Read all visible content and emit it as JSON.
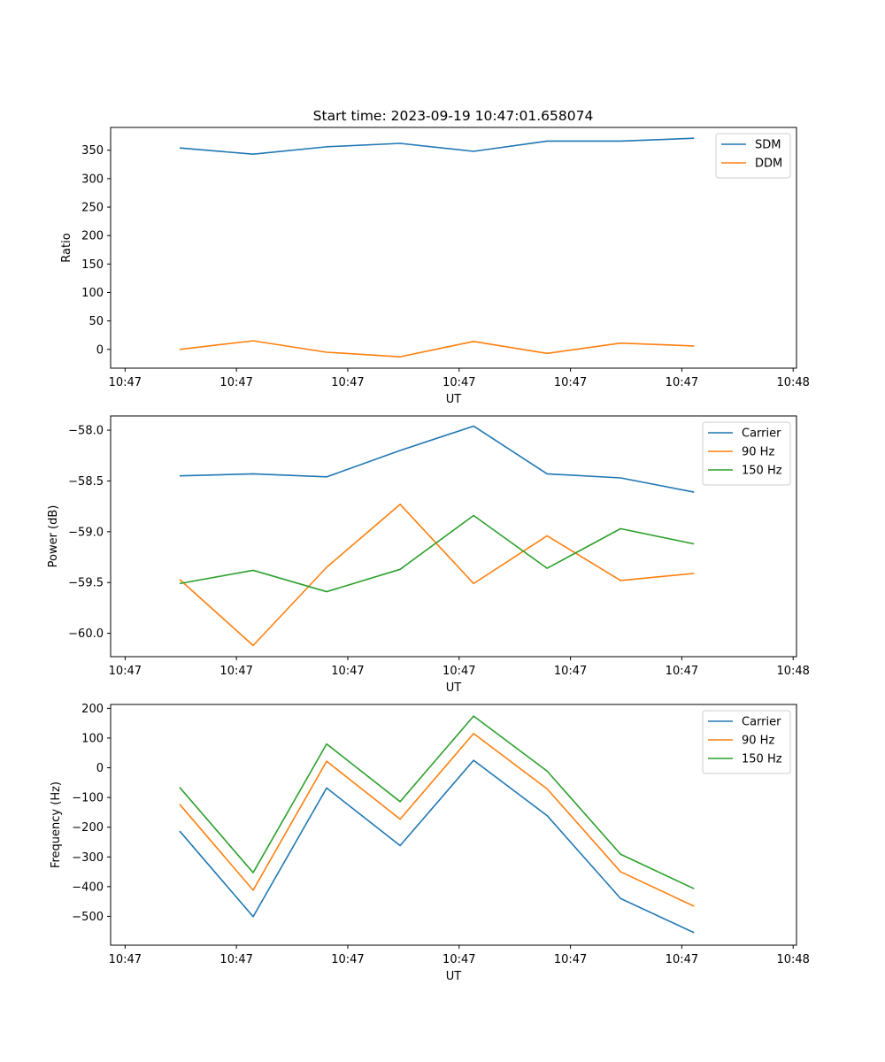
{
  "figure": {
    "title": "Start time: 2023-09-19 10:47:01.658074"
  },
  "chart_data": [
    {
      "type": "line",
      "title": "Start time: 2023-09-19 10:47:01.658074",
      "xlabel": "UT",
      "ylabel": "Ratio",
      "x_tick_labels": [
        "10:47",
        "10:47",
        "10:47",
        "10:47",
        "10:47",
        "10:47",
        "10:48"
      ],
      "x_tick_positions": [
        0,
        1,
        2,
        3,
        4,
        5,
        6
      ],
      "xlim": [
        -0.13,
        6.03
      ],
      "x": [
        0.49,
        1.15,
        1.81,
        2.47,
        3.13,
        3.79,
        4.45,
        5.11
      ],
      "ylim": [
        -33,
        390
      ],
      "y_ticks": [
        0,
        50,
        100,
        150,
        200,
        250,
        300,
        350
      ],
      "legend_position": "upper right",
      "series": [
        {
          "name": "SDM",
          "color": "#1f77b4",
          "values": [
            354,
            343,
            356,
            362,
            348,
            366,
            366,
            371
          ]
        },
        {
          "name": "DDM",
          "color": "#ff7f0e",
          "values": [
            0,
            15,
            -5,
            -13,
            14,
            -7,
            11,
            6
          ]
        }
      ]
    },
    {
      "type": "line",
      "title": "",
      "xlabel": "UT",
      "ylabel": "Power (dB)",
      "x_tick_labels": [
        "10:47",
        "10:47",
        "10:47",
        "10:47",
        "10:47",
        "10:47",
        "10:48"
      ],
      "x_tick_positions": [
        0,
        1,
        2,
        3,
        4,
        5,
        6
      ],
      "xlim": [
        -0.13,
        6.03
      ],
      "x": [
        0.49,
        1.15,
        1.81,
        2.47,
        3.13,
        3.79,
        4.45,
        5.11
      ],
      "ylim": [
        -60.23,
        -57.86
      ],
      "y_ticks": [
        -60.0,
        -59.5,
        -59.0,
        -58.5,
        -58.0
      ],
      "y_tick_labels": [
        "−60.0",
        "−59.5",
        "−59.0",
        "−58.5",
        "−58.0"
      ],
      "legend_position": "upper right",
      "series": [
        {
          "name": "Carrier",
          "color": "#1f77b4",
          "values": [
            -58.45,
            -58.43,
            -58.46,
            -58.2,
            -57.96,
            -58.43,
            -58.47,
            -58.61
          ]
        },
        {
          "name": "90 Hz",
          "color": "#ff7f0e",
          "values": [
            -59.47,
            -60.12,
            -59.35,
            -58.73,
            -59.51,
            -59.04,
            -59.48,
            -59.41
          ]
        },
        {
          "name": "150 Hz",
          "color": "#2ca02c",
          "values": [
            -59.51,
            -59.38,
            -59.59,
            -59.37,
            -58.84,
            -59.36,
            -58.97,
            -59.12
          ]
        }
      ]
    },
    {
      "type": "line",
      "title": "",
      "xlabel": "UT",
      "ylabel": "Frequency (Hz)",
      "x_tick_labels": [
        "10:47",
        "10:47",
        "10:47",
        "10:47",
        "10:47",
        "10:47",
        "10:48"
      ],
      "x_tick_positions": [
        0,
        1,
        2,
        3,
        4,
        5,
        6
      ],
      "xlim": [
        -0.13,
        6.03
      ],
      "x": [
        0.49,
        1.15,
        1.81,
        2.47,
        3.13,
        3.79,
        4.45,
        5.11
      ],
      "ylim": [
        -597,
        213
      ],
      "y_ticks": [
        -500,
        -400,
        -300,
        -200,
        -100,
        0,
        100,
        200
      ],
      "y_tick_labels": [
        "−500",
        "−400",
        "−300",
        "−200",
        "−100",
        "0",
        "100",
        "200"
      ],
      "legend_position": "upper right",
      "series": [
        {
          "name": "Carrier",
          "color": "#1f77b4",
          "values": [
            -213,
            -501,
            -68,
            -262,
            25,
            -161,
            -440,
            -555
          ]
        },
        {
          "name": "90 Hz",
          "color": "#ff7f0e",
          "values": [
            -123,
            -412,
            22,
            -173,
            115,
            -71,
            -350,
            -466
          ]
        },
        {
          "name": "150 Hz",
          "color": "#2ca02c",
          "values": [
            -66,
            -353,
            80,
            -114,
            174,
            -11,
            -291,
            -407
          ]
        }
      ]
    }
  ]
}
